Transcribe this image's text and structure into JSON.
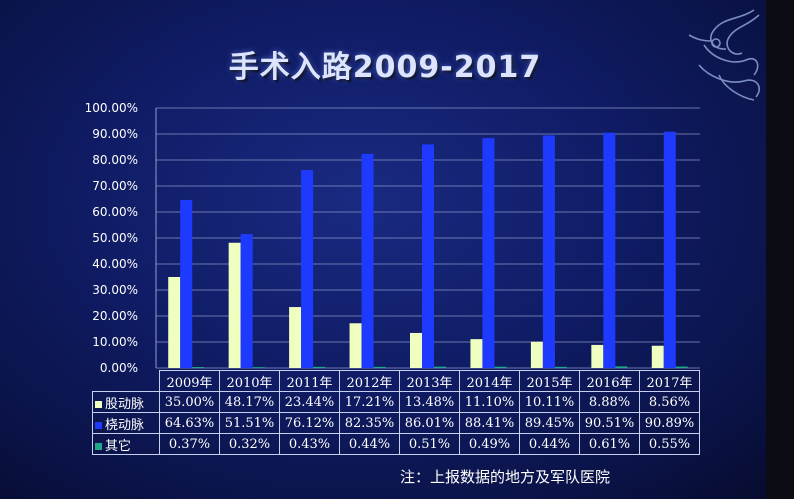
{
  "title": "手术入路2009-2017",
  "note": "注：上报数据的地方及军队医院",
  "colors": {
    "femoral": "#efffc0",
    "radial": "#1f3aff",
    "other": "#1fa88a"
  },
  "chart_data": {
    "type": "bar",
    "categories": [
      "2009年",
      "2010年",
      "2011年",
      "2012年",
      "2013年",
      "2014年",
      "2015年",
      "2016年",
      "2017年"
    ],
    "series": [
      {
        "name": "股动脉",
        "values": [
          35.0,
          48.17,
          23.44,
          17.21,
          13.48,
          11.1,
          10.11,
          8.88,
          8.56
        ],
        "labels": [
          "35.00%",
          "48.17%",
          "23.44%",
          "17.21%",
          "13.48%",
          "11.10%",
          "10.11%",
          "8.88%",
          "8.56%"
        ]
      },
      {
        "name": "桡动脉",
        "values": [
          64.63,
          51.51,
          76.12,
          82.35,
          86.01,
          88.41,
          89.45,
          90.51,
          90.89
        ],
        "labels": [
          "64.63%",
          "51.51%",
          "76.12%",
          "82.35%",
          "86.01%",
          "88.41%",
          "89.45%",
          "90.51%",
          "90.89%"
        ]
      },
      {
        "name": "其它",
        "values": [
          0.37,
          0.32,
          0.43,
          0.44,
          0.51,
          0.49,
          0.44,
          0.61,
          0.55
        ],
        "labels": [
          "0.37%",
          "0.32%",
          "0.43%",
          "0.44%",
          "0.51%",
          "0.49%",
          "0.44%",
          "0.61%",
          "0.55%"
        ]
      }
    ],
    "ylim": [
      0,
      100
    ],
    "yticks": [
      "0.00%",
      "10.00%",
      "20.00%",
      "30.00%",
      "40.00%",
      "50.00%",
      "60.00%",
      "70.00%",
      "80.00%",
      "90.00%",
      "100.00%"
    ],
    "grid": true,
    "legend": "data-table"
  }
}
